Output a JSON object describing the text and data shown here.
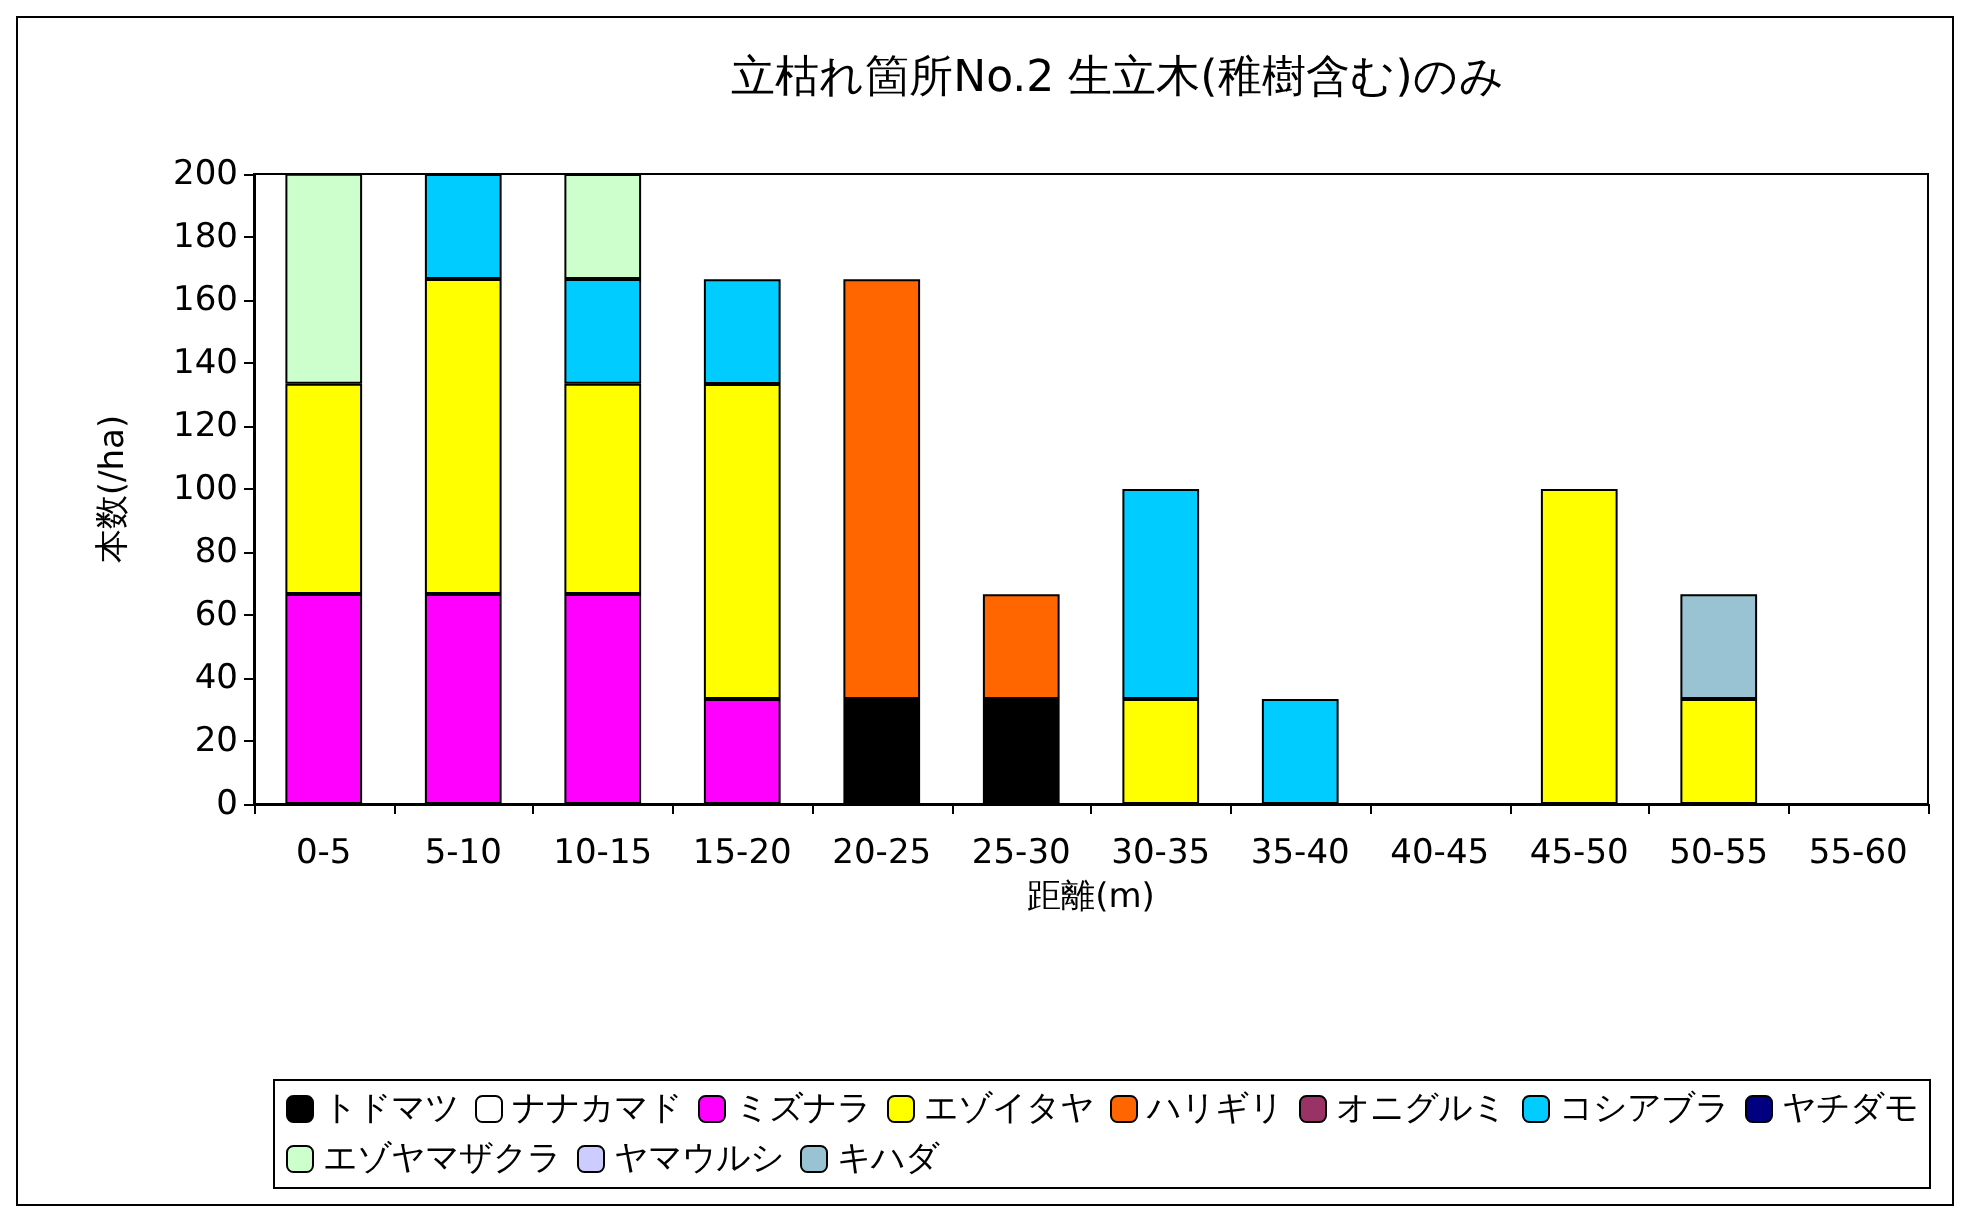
{
  "chart_data": {
    "type": "bar",
    "title": "立枯れ箇所No.2 生立木(稚樹含む)のみ",
    "xlabel": "距離(m)",
    "ylabel": "本数(/ha)",
    "categories": [
      "0-5",
      "5-10",
      "10-15",
      "15-20",
      "20-25",
      "25-30",
      "30-35",
      "35-40",
      "40-45",
      "45-50",
      "50-55",
      "55-60"
    ],
    "stacked": true,
    "ylim": [
      0,
      200
    ],
    "yticks": [
      0,
      20,
      40,
      60,
      80,
      100,
      120,
      140,
      160,
      180,
      200
    ],
    "grid": false,
    "legend": "bottom",
    "series": [
      {
        "name": "トドマツ",
        "color": "#000000",
        "values": [
          null,
          null,
          null,
          null,
          33.3,
          33.3,
          null,
          null,
          null,
          null,
          null,
          null
        ]
      },
      {
        "name": "ナナカマド",
        "color": "#ffffff",
        "values": [
          null,
          null,
          null,
          null,
          null,
          null,
          null,
          null,
          null,
          null,
          null,
          null
        ]
      },
      {
        "name": "ミズナラ",
        "color": "#ff00ff",
        "values": [
          66.7,
          66.7,
          66.7,
          33.3,
          null,
          null,
          null,
          null,
          null,
          null,
          null,
          null
        ]
      },
      {
        "name": "エゾイタヤ",
        "color": "#ffff00",
        "values": [
          66.7,
          100,
          66.7,
          100,
          null,
          null,
          33.3,
          null,
          null,
          100,
          33.3,
          null
        ]
      },
      {
        "name": "ハリギリ",
        "color": "#ff6600",
        "values": [
          null,
          null,
          null,
          null,
          133.3,
          33.3,
          null,
          null,
          null,
          null,
          null,
          null
        ]
      },
      {
        "name": "オニグルミ",
        "color": "#993366",
        "values": [
          null,
          null,
          null,
          null,
          null,
          null,
          null,
          null,
          null,
          null,
          null,
          null
        ]
      },
      {
        "name": "コシアブラ",
        "color": "#00ccff",
        "values": [
          null,
          33.3,
          33.3,
          33.3,
          null,
          null,
          66.7,
          33.3,
          null,
          null,
          null,
          null
        ]
      },
      {
        "name": "ヤチダモ",
        "color": "#000080",
        "values": [
          null,
          null,
          null,
          null,
          null,
          null,
          null,
          null,
          null,
          null,
          null,
          null
        ]
      },
      {
        "name": "エゾヤマザクラ",
        "color": "#ccffcc",
        "values": [
          66.7,
          null,
          33.3,
          null,
          null,
          null,
          null,
          null,
          null,
          null,
          null,
          null
        ]
      },
      {
        "name": "ヤマウルシ",
        "color": "#ccccff",
        "values": [
          null,
          null,
          null,
          null,
          null,
          null,
          null,
          null,
          null,
          null,
          null,
          null
        ]
      },
      {
        "name": "キハダ",
        "color": "#99c3d3",
        "values": [
          null,
          null,
          null,
          null,
          null,
          null,
          null,
          null,
          null,
          null,
          33.3,
          null
        ]
      }
    ]
  }
}
